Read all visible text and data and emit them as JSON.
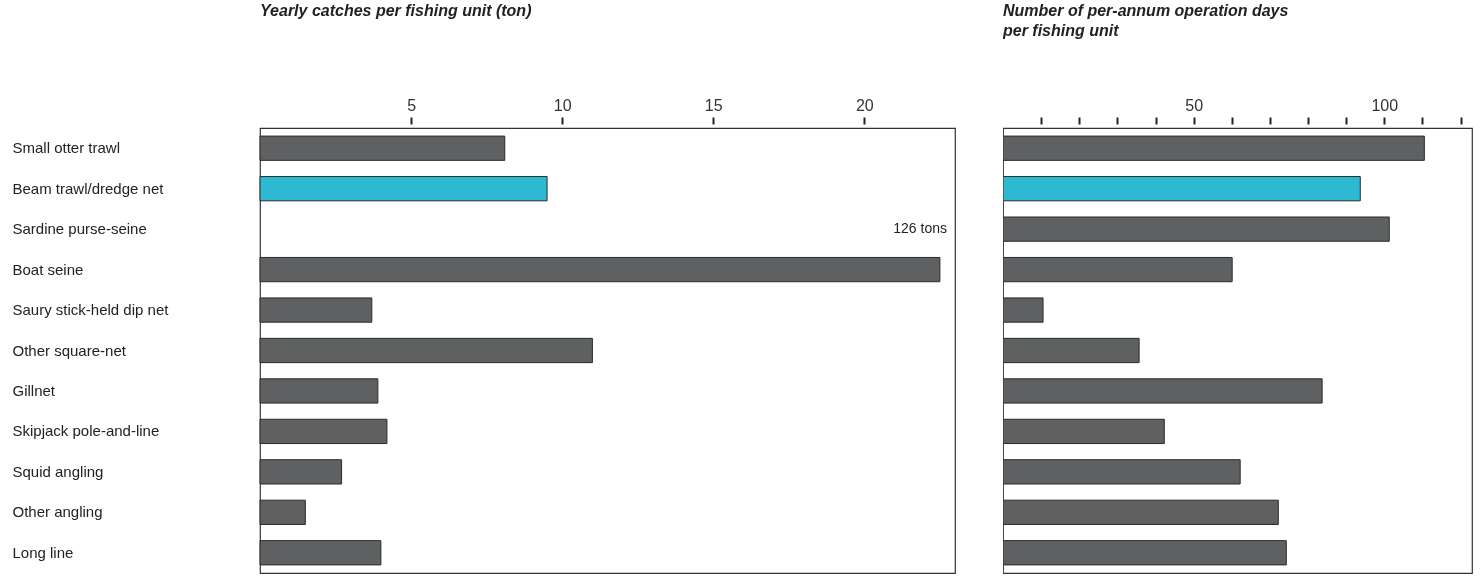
{
  "chart_data": [
    {
      "type": "bar",
      "orientation": "horizontal",
      "title": "Yearly catches per fishing unit (ton)",
      "categories": [
        "Small otter trawl",
        "Beam trawl/dredge net",
        "Sardine purse-seine",
        "Boat seine",
        "Saury stick-held dip net",
        "Other square-net",
        "Gillnet",
        "Skipjack pole-and-line",
        "Squid angling",
        "Other angling",
        "Long line"
      ],
      "values": [
        8.1,
        9.5,
        null,
        22.5,
        3.7,
        11.0,
        3.9,
        4.2,
        2.7,
        1.5,
        4.0
      ],
      "annotations": [
        "126 tons"
      ],
      "colors": [
        "#5e6062",
        "#2db9d1",
        "#5e6062",
        "#5e6062",
        "#5e6062",
        "#5e6062",
        "#5e6062",
        "#5e6062",
        "#5e6062",
        "#5e6062",
        "#5e6062"
      ],
      "xlim": [
        0,
        23
      ],
      "xticks": [
        5,
        10,
        15,
        20
      ]
    },
    {
      "type": "bar",
      "orientation": "horizontal",
      "title": "Number of per-annum operation days per fishing unit",
      "tick_labels": "x",
      "categories": [
        null,
        null,
        null,
        null,
        null,
        null,
        null,
        null,
        null,
        null,
        null
      ],
      "values": [
        110.5,
        93.7,
        101.3,
        60.1,
        10.5,
        35.7,
        83.7,
        42.3,
        62.2,
        72.2,
        74.3
      ],
      "colors": [
        "#5e6062",
        "#2db9d1",
        "#5e6062",
        "#5e6062",
        "#5e6062",
        "#5e6062",
        "#5e6062",
        "#5e6062",
        "#5e6062",
        "#5e6062",
        "#5e6062"
      ],
      "xlim": [
        0,
        123
      ],
      "xticks": [
        {
          "value": 10,
          "label": null
        },
        {
          "value": 20,
          "label": null
        },
        {
          "value": 30,
          "label": null
        },
        {
          "value": 40,
          "label": null
        },
        50,
        {
          "value": 60,
          "label": null
        },
        {
          "value": 70,
          "label": null
        },
        {
          "value": 80,
          "label": null
        },
        {
          "value": 90,
          "label": null
        },
        100,
        {
          "value": 110,
          "label": null
        },
        {
          "value": 120,
          "label": null
        }
      ]
    }
  ]
}
